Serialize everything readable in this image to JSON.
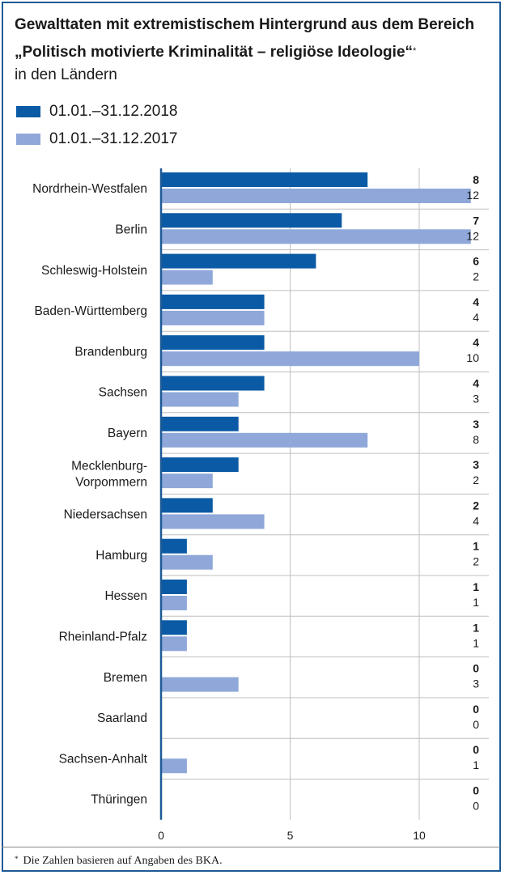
{
  "title_line1": "Gewalttaten mit extremistischem Hintergrund aus dem Bereich",
  "title_line2": "„Politisch motivierte Kriminalität – religiöse Ideologie“",
  "title_asterisk": "*",
  "subtitle": "in den Ländern",
  "footnote_marker": "*",
  "footnote": "Die Zahlen basieren auf Angaben des BKA.",
  "colors": {
    "series_2018": "#0b5aa5",
    "series_2017": "#8fa8d9",
    "axis": "#1d5a96",
    "grid": "#bfbfbf"
  },
  "chart_data": {
    "type": "bar",
    "orientation": "horizontal",
    "categories": [
      "Nordrhein-Westfalen",
      "Berlin",
      "Schleswig-Holstein",
      "Baden-Württemberg",
      "Brandenburg",
      "Sachsen",
      "Bayern",
      "Mecklenburg-\nVorpommern",
      "Niedersachsen",
      "Hamburg",
      "Hessen",
      "Rheinland-Pfalz",
      "Bremen",
      "Saarland",
      "Sachsen-Anhalt",
      "Thüringen"
    ],
    "series": [
      {
        "name": "01.01.–31.12.2018",
        "values": [
          8,
          7,
          6,
          4,
          4,
          4,
          3,
          3,
          2,
          1,
          1,
          1,
          0,
          0,
          0,
          0
        ]
      },
      {
        "name": "01.01.–31.12.2017",
        "values": [
          12,
          12,
          2,
          4,
          10,
          3,
          8,
          2,
          4,
          2,
          1,
          1,
          3,
          0,
          1,
          0
        ]
      }
    ],
    "x_ticks": [
      0,
      5,
      10,
      15,
      20
    ],
    "xlim": [
      0,
      25
    ],
    "grid": true,
    "legend": "top-left"
  }
}
